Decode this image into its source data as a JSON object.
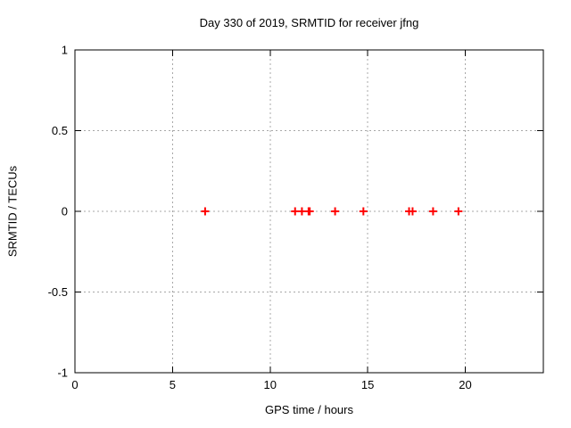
{
  "window": {
    "background_color": "#ffffff",
    "text_color": "#000000"
  },
  "chart_data": {
    "type": "scatter",
    "title": "Day 330 of 2019, SRMTID for receiver jfng",
    "xlabel": "GPS time / hours",
    "ylabel": "SRMTID / TECUs",
    "xlim": [
      0,
      24
    ],
    "ylim": [
      -1,
      1
    ],
    "x_ticks": [
      {
        "value": 0,
        "label": "0"
      },
      {
        "value": 5,
        "label": "5"
      },
      {
        "value": 10,
        "label": "10"
      },
      {
        "value": 15,
        "label": "15"
      },
      {
        "value": 20,
        "label": "20"
      }
    ],
    "y_ticks": [
      {
        "value": -1,
        "label": "-1"
      },
      {
        "value": -0.5,
        "label": "-0.5"
      },
      {
        "value": 0,
        "label": "0"
      },
      {
        "value": 0.5,
        "label": "0.5"
      },
      {
        "value": 1,
        "label": "1"
      }
    ],
    "grid": true,
    "grid_color": "#a8a8a8",
    "border_color": "#000000",
    "legend": "none",
    "marker": "plus",
    "marker_color": "#ff0000",
    "series": [
      {
        "name": "SRMTID",
        "points": [
          {
            "x": 6.67,
            "y": 0
          },
          {
            "x": 11.28,
            "y": 0
          },
          {
            "x": 11.63,
            "y": 0
          },
          {
            "x": 11.97,
            "y": 0
          },
          {
            "x": 12.03,
            "y": 0
          },
          {
            "x": 13.33,
            "y": 0
          },
          {
            "x": 14.78,
            "y": 0
          },
          {
            "x": 17.12,
            "y": 0
          },
          {
            "x": 17.3,
            "y": 0
          },
          {
            "x": 18.35,
            "y": 0
          },
          {
            "x": 19.65,
            "y": 0
          }
        ]
      }
    ]
  }
}
